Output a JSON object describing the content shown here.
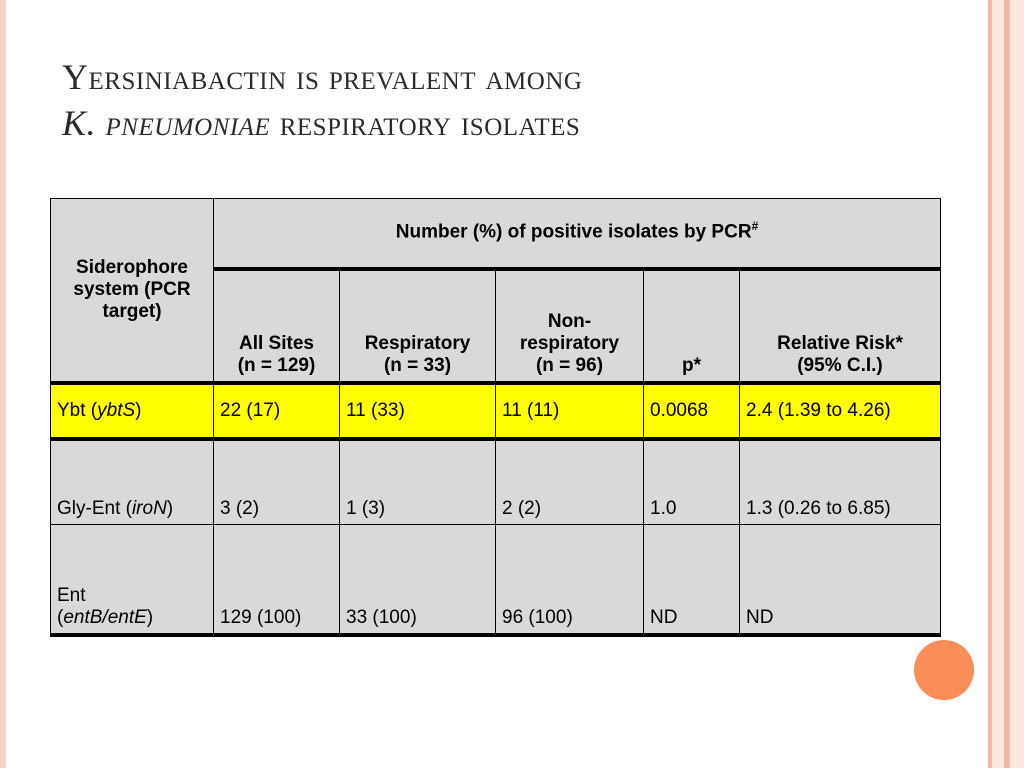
{
  "title": {
    "line1": "Yersiniabactin is prevalent among",
    "line2_italic": "K. pneumoniae",
    "line2_rest": " respiratory isolates"
  },
  "table": {
    "col0_header": "Siderophore system (PCR target)",
    "group_header": "Number (%) of positive isolates by PCR",
    "group_header_sup": "#",
    "headers": {
      "all_sites": "All Sites",
      "all_sites_n": "(n = 129)",
      "respiratory": "Respiratory",
      "respiratory_n": "(n = 33)",
      "nonresp_1": "Non-",
      "nonresp_2": "respiratory",
      "nonresp_n": "(n = 96)",
      "p": "p*",
      "rr": "Relative Risk*",
      "rr_ci": "(95% C.I.)"
    },
    "rows": [
      {
        "name": "Ybt (",
        "target": "ybtS",
        "close": ")",
        "all": "22 (17)",
        "resp": "11 (33)",
        "nonresp": "11 (11)",
        "p": "0.0068",
        "rr": "2.4 (1.39 to 4.26)"
      },
      {
        "name": "Gly-Ent (",
        "target": "iroN",
        "close": ")",
        "all": "3 (2)",
        "resp": "1 (3)",
        "nonresp": "2 (2)",
        "p": "1.0",
        "rr": "1.3 (0.26 to 6.85)"
      },
      {
        "name": "Ent",
        "name2": "(",
        "target": "entB/entE",
        "close": ")",
        "all": "129 (100)",
        "resp": "33 (100)",
        "nonresp": "96 (100)",
        "p": "ND",
        "rr": "ND"
      }
    ]
  },
  "colors": {
    "highlight_row": "#ffff00",
    "cell_background": "#d9d9d9",
    "accent_circle": "#f98e5a"
  }
}
